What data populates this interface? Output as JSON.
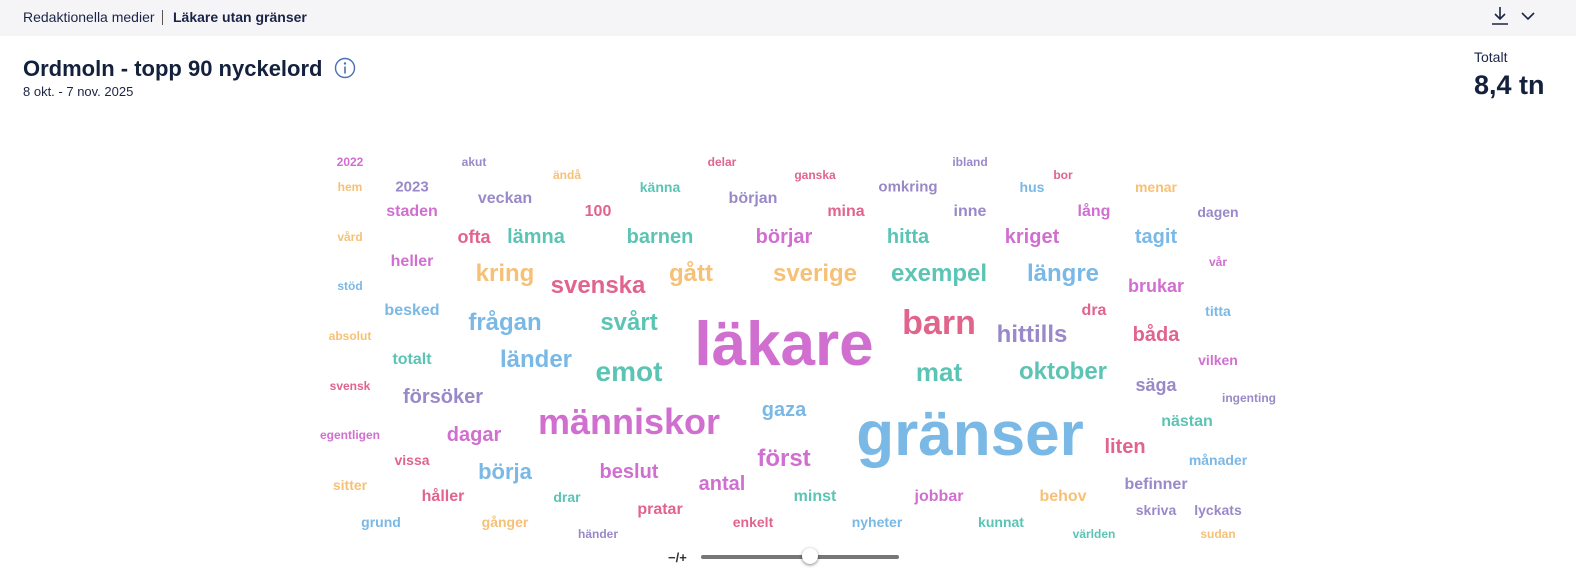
{
  "header": {
    "breadcrumb": "Redaktionella medier",
    "current": "Läkare utan gränser"
  },
  "card": {
    "title": "Ordmoln - topp 90 nyckelord",
    "date_range": "8 okt. - 7 nov. 2025",
    "total_label": "Totalt",
    "total_value": "8,4 tn",
    "slider_label": "−/+"
  },
  "words": [
    {
      "text": "2022",
      "color": "#d16fd1"
    },
    {
      "text": "akut",
      "color": "#9a89c8"
    },
    {
      "text": "delar",
      "color": "#e0648c"
    },
    {
      "text": "ibland",
      "color": "#9a89c8"
    },
    {
      "text": "hem",
      "color": "#f6c177"
    },
    {
      "text": "ändå",
      "color": "#f6c177"
    },
    {
      "text": "ganska",
      "color": "#e0648c"
    },
    {
      "text": "bor",
      "color": "#e0648c"
    },
    {
      "text": "2023",
      "color": "#9a89c8"
    },
    {
      "text": "känna",
      "color": "#5bc4b4"
    },
    {
      "text": "omkring",
      "color": "#9a89c8"
    },
    {
      "text": "hus",
      "color": "#7ab8e6"
    },
    {
      "text": "menar",
      "color": "#f6c177"
    },
    {
      "text": "veckan",
      "color": "#9a89c8"
    },
    {
      "text": "början",
      "color": "#9a89c8"
    },
    {
      "text": "staden",
      "color": "#d16fd1"
    },
    {
      "text": "100",
      "color": "#e0648c"
    },
    {
      "text": "mina",
      "color": "#e0648c"
    },
    {
      "text": "inne",
      "color": "#9a89c8"
    },
    {
      "text": "lång",
      "color": "#d16fd1"
    },
    {
      "text": "dagen",
      "color": "#9a89c8"
    },
    {
      "text": "vård",
      "color": "#f6c177"
    },
    {
      "text": "ofta",
      "color": "#e0648c"
    },
    {
      "text": "lämna",
      "color": "#5bc4b4"
    },
    {
      "text": "barnen",
      "color": "#5bc4b4"
    },
    {
      "text": "börjar",
      "color": "#d16fd1"
    },
    {
      "text": "hitta",
      "color": "#5bc4b4"
    },
    {
      "text": "kriget",
      "color": "#d16fd1"
    },
    {
      "text": "tagit",
      "color": "#7ab8e6"
    },
    {
      "text": "heller",
      "color": "#d16fd1"
    },
    {
      "text": "vår",
      "color": "#d16fd1"
    },
    {
      "text": "kring",
      "color": "#f6c177"
    },
    {
      "text": "gått",
      "color": "#f6c177"
    },
    {
      "text": "sverige",
      "color": "#f6c177"
    },
    {
      "text": "exempel",
      "color": "#5bc4b4"
    },
    {
      "text": "längre",
      "color": "#7ab8e6"
    },
    {
      "text": "svenska",
      "color": "#e0648c"
    },
    {
      "text": "brukar",
      "color": "#d16fd1"
    },
    {
      "text": "stöd",
      "color": "#7ab8e6"
    },
    {
      "text": "besked",
      "color": "#7ab8e6"
    },
    {
      "text": "dra",
      "color": "#e0648c"
    },
    {
      "text": "titta",
      "color": "#7ab8e6"
    },
    {
      "text": "frågan",
      "color": "#7ab8e6"
    },
    {
      "text": "svårt",
      "color": "#5bc4b4"
    },
    {
      "text": "läkare",
      "color": "#d16fd1"
    },
    {
      "text": "barn",
      "color": "#e0648c"
    },
    {
      "text": "hittills",
      "color": "#9a89c8"
    },
    {
      "text": "båda",
      "color": "#e0648c"
    },
    {
      "text": "absolut",
      "color": "#f6c177"
    },
    {
      "text": "totalt",
      "color": "#5bc4b4"
    },
    {
      "text": "länder",
      "color": "#7ab8e6"
    },
    {
      "text": "vilken",
      "color": "#d16fd1"
    },
    {
      "text": "emot",
      "color": "#5bc4b4"
    },
    {
      "text": "mat",
      "color": "#5bc4b4"
    },
    {
      "text": "oktober",
      "color": "#5bc4b4"
    },
    {
      "text": "svensk",
      "color": "#e0648c"
    },
    {
      "text": "säga",
      "color": "#9a89c8"
    },
    {
      "text": "försöker",
      "color": "#9a89c8"
    },
    {
      "text": "ingenting",
      "color": "#9a89c8"
    },
    {
      "text": "gaza",
      "color": "#7ab8e6"
    },
    {
      "text": "människor",
      "color": "#d16fd1"
    },
    {
      "text": "gränser",
      "color": "#7ab8e6"
    },
    {
      "text": "nästan",
      "color": "#5bc4b4"
    },
    {
      "text": "egentligen",
      "color": "#d16fd1"
    },
    {
      "text": "dagar",
      "color": "#d16fd1"
    },
    {
      "text": "liten",
      "color": "#e0648c"
    },
    {
      "text": "vissa",
      "color": "#e0648c"
    },
    {
      "text": "först",
      "color": "#d16fd1"
    },
    {
      "text": "månader",
      "color": "#7ab8e6"
    },
    {
      "text": "börja",
      "color": "#7ab8e6"
    },
    {
      "text": "beslut",
      "color": "#d16fd1"
    },
    {
      "text": "sitter",
      "color": "#f6c177"
    },
    {
      "text": "antal",
      "color": "#d16fd1"
    },
    {
      "text": "befinner",
      "color": "#9a89c8"
    },
    {
      "text": "håller",
      "color": "#e0648c"
    },
    {
      "text": "drar",
      "color": "#5bc4b4"
    },
    {
      "text": "minst",
      "color": "#5bc4b4"
    },
    {
      "text": "jobbar",
      "color": "#d16fd1"
    },
    {
      "text": "behov",
      "color": "#f6c177"
    },
    {
      "text": "pratar",
      "color": "#e0648c"
    },
    {
      "text": "skriva",
      "color": "#9a89c8"
    },
    {
      "text": "lyckats",
      "color": "#9a89c8"
    },
    {
      "text": "grund",
      "color": "#7ab8e6"
    },
    {
      "text": "gånger",
      "color": "#f6c177"
    },
    {
      "text": "enkelt",
      "color": "#e0648c"
    },
    {
      "text": "nyheter",
      "color": "#7ab8e6"
    },
    {
      "text": "kunnat",
      "color": "#5bc4b4"
    },
    {
      "text": "händer",
      "color": "#9a89c8"
    },
    {
      "text": "världen",
      "color": "#5bc4b4"
    },
    {
      "text": "sudan",
      "color": "#f6c177"
    }
  ]
}
